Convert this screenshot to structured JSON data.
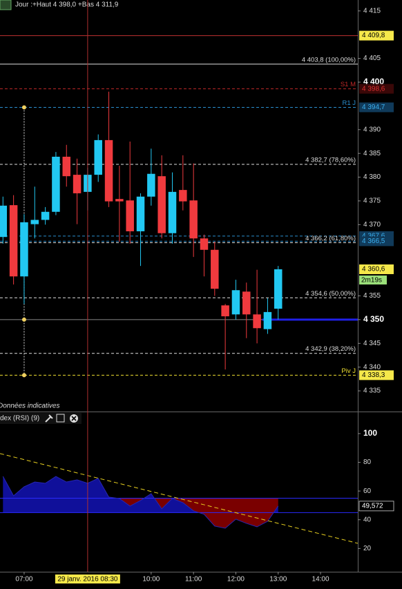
{
  "chart_data": [
    {
      "type": "candlestick",
      "title": "Jour :+Haut 4 398,0 +Bas 4 311,9",
      "note": "Données indicatives",
      "x": [
        6.5,
        6.75,
        7,
        7.25,
        7.5,
        7.75,
        8,
        8.25,
        8.5,
        8.75,
        9,
        9.25,
        9.5,
        9.75,
        10,
        10.25,
        10.5,
        10.75,
        11,
        11.25,
        11.5,
        11.75,
        12,
        12.25,
        12.5,
        12.75,
        13
      ],
      "open": [
        4367.4,
        4374.1,
        4359.1,
        4370.1,
        4371.0,
        4372.7,
        4384.3,
        4380.5,
        4376.9,
        4380.5,
        4387.8,
        4375.4,
        4375.1,
        4368.6,
        4375.9,
        4380.2,
        4368.2,
        4377.3,
        4375.1,
        4367.1,
        4364.7,
        4353.0,
        4351.1,
        4355.9,
        4351.1,
        4348.0,
        4352.3
      ],
      "high": [
        4375.9,
        4376.2,
        4372.2,
        4378.0,
        4373.7,
        4385.3,
        4386.8,
        4383.9,
        4382.0,
        4389.0,
        4398.0,
        4382.4,
        4387.5,
        4376.6,
        4386.0,
        4384.6,
        4381.0,
        4384.6,
        4382.9,
        4367.9,
        4366.4,
        4353.3,
        4358.4,
        4357.8,
        4360.5,
        4354.5,
        4361.3
      ],
      "low": [
        4366.0,
        4357.4,
        4353.3,
        4367.1,
        4370.0,
        4372.0,
        4378.0,
        4370.1,
        4373.0,
        4379.0,
        4373.7,
        4366.4,
        4366.0,
        4361.3,
        4374.0,
        4367.1,
        4366.0,
        4373.0,
        4363.2,
        4359.1,
        4355.0,
        4339.5,
        4350.0,
        4346.1,
        4345.0,
        4347.0,
        4350.0
      ],
      "close": [
        4374.0,
        4359.1,
        4370.5,
        4371.0,
        4372.7,
        4384.3,
        4380.2,
        4376.6,
        4380.5,
        4387.8,
        4374.9,
        4374.9,
        4368.6,
        4375.9,
        4380.7,
        4368.2,
        4376.9,
        4374.9,
        4367.1,
        4364.7,
        4356.5,
        4350.7,
        4356.2,
        4351.1,
        4348.2,
        4351.6,
        4360.6
      ],
      "up_color": "#22c8f2",
      "down_color": "#f03a3e",
      "last_label": "4 360,6",
      "last_color": "#f5e84a",
      "timer": "2m19s",
      "timer_color": "#9be07a",
      "xlim": [
        6.43,
        14.88
      ],
      "ylim": [
        4333.7,
        4417.3
      ],
      "yticks": [
        {
          "value": 4415,
          "label": "4 415"
        },
        {
          "value": 4405,
          "label": "4 405"
        },
        {
          "value": 4400,
          "label": "4 400"
        },
        {
          "value": 4390,
          "label": "4 390"
        },
        {
          "value": 4385,
          "label": "4 385"
        },
        {
          "value": 4380,
          "label": "4 380"
        },
        {
          "value": 4375,
          "label": "4 375"
        },
        {
          "value": 4370,
          "label": "4 370"
        },
        {
          "value": 4355,
          "label": "4 355"
        },
        {
          "value": 4350,
          "label": "4 350"
        },
        {
          "value": 4345,
          "label": "4 345"
        },
        {
          "value": 4340,
          "label": "4 340"
        },
        {
          "value": 4335,
          "label": "4 335"
        }
      ],
      "bold_ticks": [
        4400,
        4350
      ],
      "levels": [
        {
          "value": 4409.8,
          "color": "#c03030",
          "dashed": false,
          "tag": "4 409,8",
          "tag_bg": "#f5e84a",
          "tag_fg": "#000"
        },
        {
          "value": 4403.8,
          "color": "#e0e0e0",
          "dashed": false,
          "label": "4 403,8 (100,00%)"
        },
        {
          "value": 4398.6,
          "color": "#c02828",
          "dashed": true,
          "label": "S1 M",
          "tag": "4 398,6",
          "tag_bg": "#3a0808",
          "tag_fg": "#e03030"
        },
        {
          "value": 4394.7,
          "color": "#2a8fd0",
          "dashed": true,
          "label": "R1 J",
          "tag": "4 394,7",
          "tag_bg": "#103a5a",
          "tag_fg": "#3ab0f0"
        },
        {
          "value": 4382.7,
          "color": "#e0e0e0",
          "dashed": true,
          "label": "4 382,7 (78,60%)"
        },
        {
          "value": 4367.6,
          "color": "#2a8fd0",
          "dashed": true,
          "tag": "4 367,6",
          "tag_bg": "#103a5a",
          "tag_fg": "#3ab0f0"
        },
        {
          "value": 4366.5,
          "color": "#2a8fd0",
          "dashed": true,
          "tag": "4 366,5",
          "tag_bg": "#103a5a",
          "tag_fg": "#3ab0f0"
        },
        {
          "value": 4366.2,
          "color": "#e0e0e0",
          "dashed": true,
          "label": "4 366,2 (61,80%)"
        },
        {
          "value": 4354.6,
          "color": "#e0e0e0",
          "dashed": true,
          "label": "4 354,6 (50,00%)"
        },
        {
          "value": 4350,
          "color": "#888",
          "dashed": false
        },
        {
          "value": 4350,
          "color": "#2020e8",
          "dashed": false,
          "from_x": 12.625,
          "width": 3
        },
        {
          "value": 4342.9,
          "color": "#e0e0e0",
          "dashed": true,
          "label": "4 342,9 (38,20%)"
        },
        {
          "value": 4338.3,
          "color": "#f0e030",
          "dashed": true,
          "label": "Piv J",
          "tag": "4 338,3",
          "tag_bg": "#f5e84a",
          "tag_fg": "#000"
        }
      ],
      "vline": {
        "x": 7,
        "points": [
          4394.7,
          4350,
          4338.3
        ],
        "color": "#f0d060"
      }
    },
    {
      "type": "rsi",
      "title": "dex (RSI) (9)",
      "x": [
        6.5,
        6.75,
        7,
        7.25,
        7.5,
        7.75,
        8,
        8.25,
        8.5,
        8.75,
        9,
        9.25,
        9.5,
        9.75,
        10,
        10.25,
        10.5,
        10.75,
        11,
        11.25,
        11.5,
        11.75,
        12,
        12.25,
        12.5,
        12.75,
        13
      ],
      "values": [
        70.2,
        56.7,
        63.0,
        66.3,
        65.4,
        70.2,
        66.3,
        67.8,
        65.4,
        68.8,
        55.8,
        54.8,
        49.5,
        53.4,
        58.2,
        47.6,
        54.8,
        51.9,
        46.2,
        43.8,
        35.6,
        34.1,
        40.4,
        37.5,
        35.1,
        38.9,
        49.572
      ],
      "last_label": "49,572",
      "levels": [
        55,
        45
      ],
      "level_color": "#2a2aff",
      "above_color": "#10109a",
      "below_color": "#7a0000",
      "trendline": {
        "x": [
          6.43,
          14.88
        ],
        "y": [
          86.1,
          23.6
        ],
        "color": "#e8d020"
      },
      "xlim": [
        6.43,
        14.88
      ],
      "ylim": [
        3.8,
        114.4
      ],
      "yticks": [
        100,
        80,
        60,
        40,
        20
      ],
      "xticks": [
        {
          "value": 7,
          "label": "07:00"
        },
        {
          "value": 10,
          "label": "10:00"
        },
        {
          "value": 11,
          "label": "11:00"
        },
        {
          "value": 12,
          "label": "12:00"
        },
        {
          "value": 13,
          "label": "13:00"
        },
        {
          "value": 14,
          "label": "14:00"
        }
      ],
      "crosshair": {
        "x": 8.5,
        "label": "29 janv. 2016 08:30",
        "color": "#b03030"
      }
    }
  ]
}
